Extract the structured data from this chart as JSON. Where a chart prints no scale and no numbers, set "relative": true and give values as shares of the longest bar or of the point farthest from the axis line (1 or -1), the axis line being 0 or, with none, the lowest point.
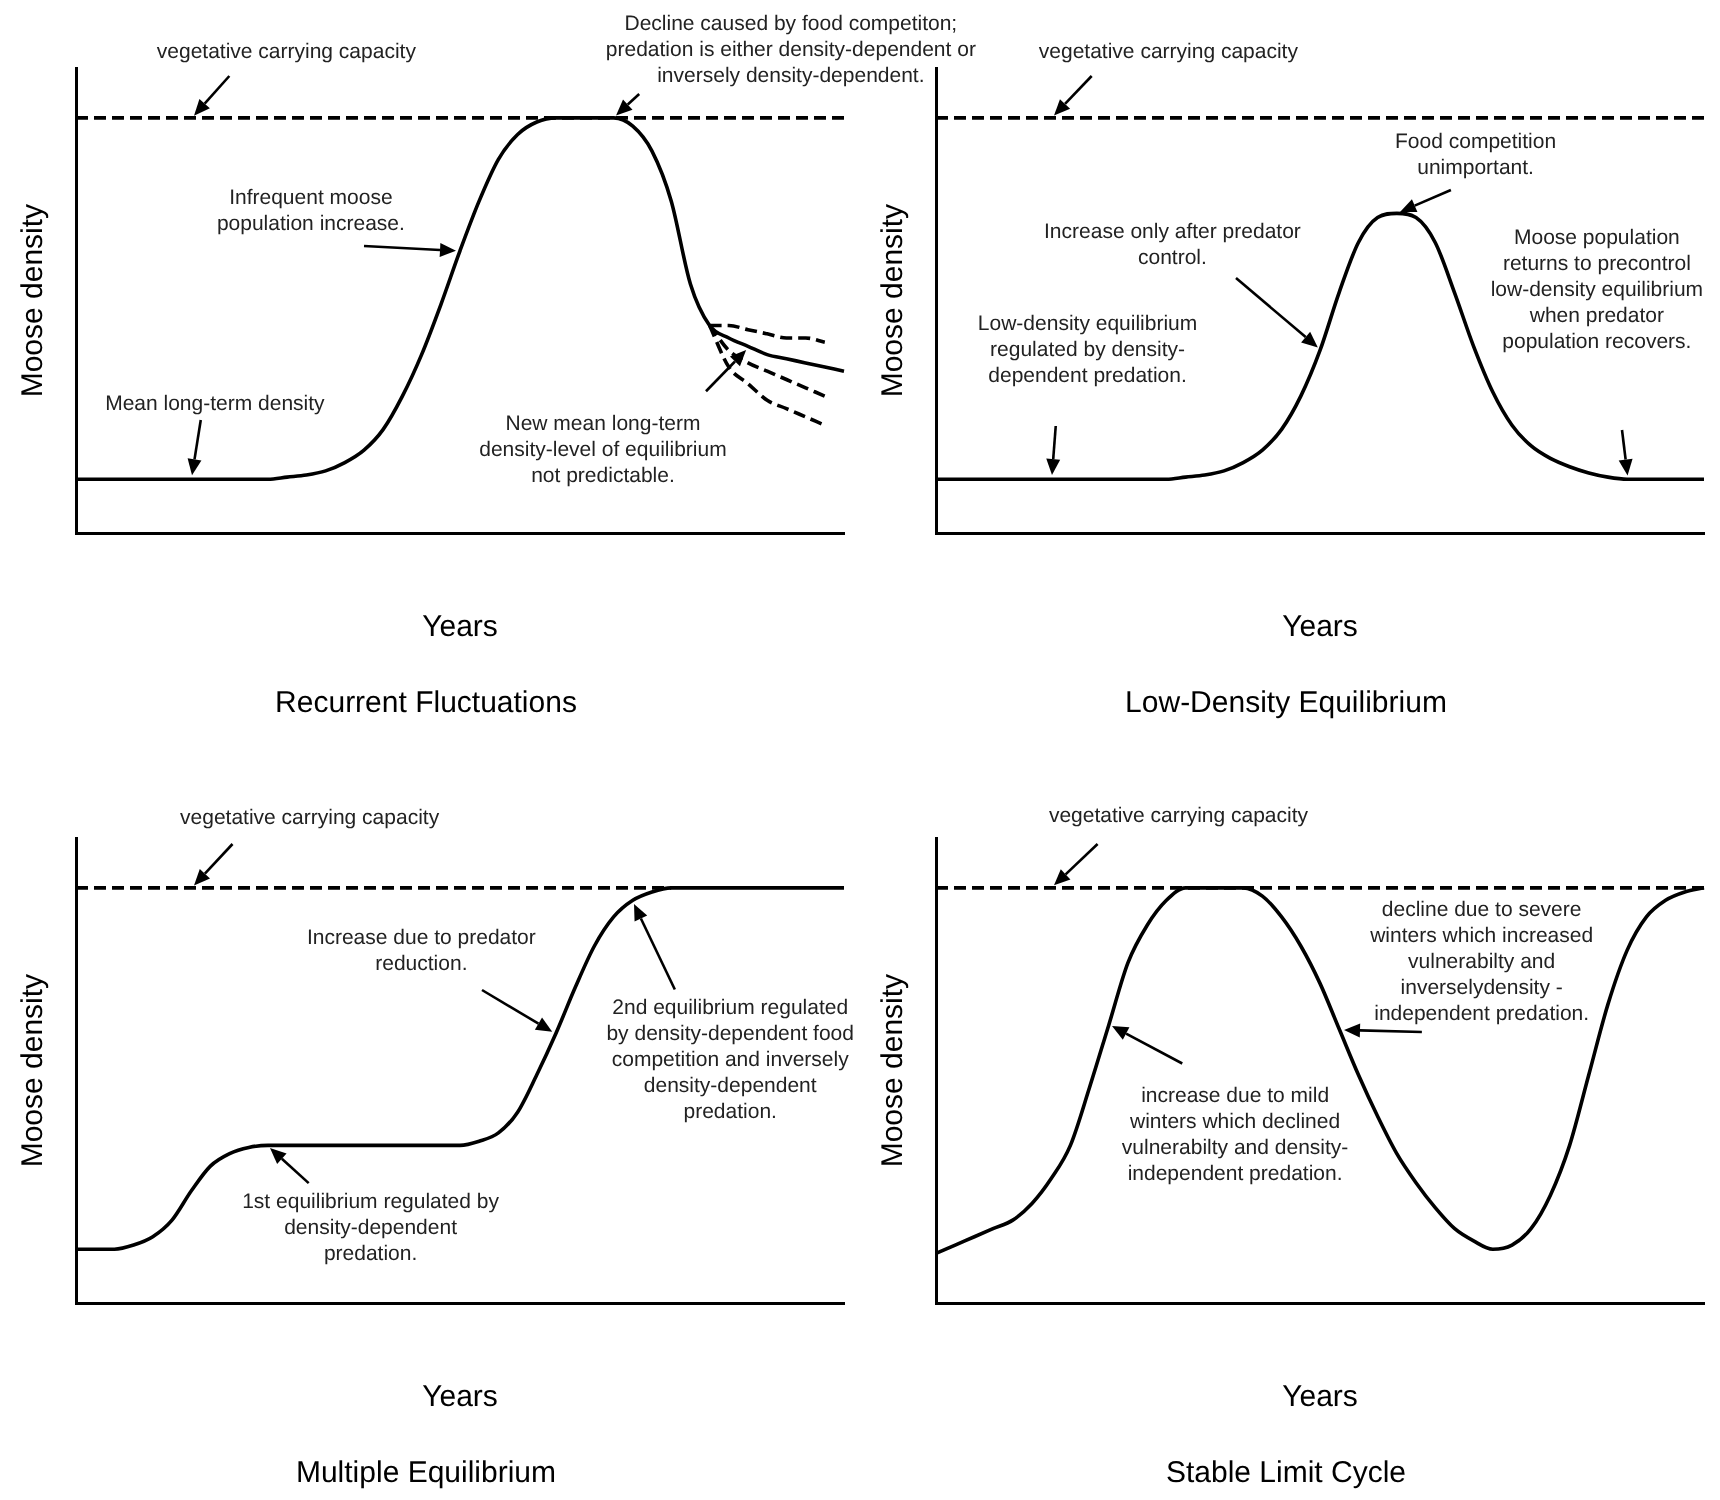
{
  "chart_data": [
    {
      "type": "line",
      "title": "Recurrent Fluctuations",
      "xlabel": "Years",
      "ylabel": "Moose density",
      "relative": true,
      "legend": false,
      "marker": "none",
      "categories": [
        null,
        null,
        null,
        null,
        null,
        null,
        null,
        null,
        null,
        null,
        null,
        null,
        null,
        null,
        null,
        null,
        null,
        null,
        null,
        null,
        null,
        null,
        null,
        null,
        null,
        null,
        null,
        null,
        null,
        null,
        null,
        null,
        null,
        null,
        null,
        null,
        null,
        null,
        null,
        null,
        null
      ],
      "series": [
        {
          "color": "#000000",
          "line_style": "solid",
          "values": [
            0.13,
            0.13,
            0.13,
            0.13,
            0.13,
            0.13,
            0.13,
            0.13,
            0.13,
            0.13,
            0.13,
            0.135,
            0.14,
            0.15,
            0.17,
            0.2,
            0.25,
            0.33,
            0.43,
            0.55,
            0.68,
            0.8,
            0.9,
            0.96,
            0.99,
            1,
            1,
            1,
            1,
            0.98,
            0.92,
            0.8,
            0.6,
            0.5,
            0.47,
            0.45,
            0.43,
            0.42,
            0.41,
            0.4,
            0.39
          ]
        },
        {
          "color": "#000000",
          "line_style": "dashed",
          "values": [
            1,
            1,
            1,
            1,
            1,
            1,
            1,
            1,
            1,
            1,
            1,
            1,
            1,
            1,
            1,
            1,
            1,
            1,
            1,
            1,
            1,
            1,
            1,
            1,
            1,
            1,
            1,
            1,
            1,
            1,
            1,
            1,
            1,
            1,
            1,
            1,
            1,
            1,
            1,
            1,
            1
          ]
        },
        {
          "color": "#000000",
          "line_style": "dashed",
          "values": [
            null,
            null,
            null,
            null,
            null,
            null,
            null,
            null,
            null,
            null,
            null,
            null,
            null,
            null,
            null,
            null,
            null,
            null,
            null,
            null,
            null,
            null,
            null,
            null,
            null,
            null,
            null,
            null,
            null,
            null,
            null,
            null,
            null,
            0.5,
            0.5,
            0.49,
            0.48,
            0.47,
            0.47,
            0.46,
            null
          ]
        },
        {
          "color": "#000000",
          "line_style": "dashed",
          "values": [
            null,
            null,
            null,
            null,
            null,
            null,
            null,
            null,
            null,
            null,
            null,
            null,
            null,
            null,
            null,
            null,
            null,
            null,
            null,
            null,
            null,
            null,
            null,
            null,
            null,
            null,
            null,
            null,
            null,
            null,
            null,
            null,
            null,
            0.5,
            0.44,
            0.41,
            0.39,
            0.37,
            0.35,
            0.33,
            null
          ]
        },
        {
          "color": "#000000",
          "line_style": "dashed",
          "values": [
            null,
            null,
            null,
            null,
            null,
            null,
            null,
            null,
            null,
            null,
            null,
            null,
            null,
            null,
            null,
            null,
            null,
            null,
            null,
            null,
            null,
            null,
            null,
            null,
            null,
            null,
            null,
            null,
            null,
            null,
            null,
            null,
            null,
            0.5,
            0.4,
            0.36,
            0.32,
            0.3,
            0.28,
            0.26,
            null
          ]
        }
      ],
      "annotations": [
        "vegetative carrying capacity",
        "Decline caused by food competiton; predation is either density-dependent or inversely density-dependent.",
        "Infrequent moose population increase.",
        "Mean long-term density",
        "New mean long-term density-level of equilibrium not predictable."
      ]
    },
    {
      "type": "line",
      "title": "Low-Density Equilibrium",
      "xlabel": "Years",
      "ylabel": "Moose density",
      "relative": true,
      "legend": false,
      "marker": "none",
      "categories": [
        null,
        null,
        null,
        null,
        null,
        null,
        null,
        null,
        null,
        null,
        null,
        null,
        null,
        null,
        null,
        null,
        null,
        null,
        null,
        null,
        null,
        null,
        null,
        null,
        null,
        null,
        null,
        null,
        null,
        null,
        null,
        null,
        null,
        null,
        null,
        null,
        null,
        null,
        null,
        null,
        null
      ],
      "series": [
        {
          "color": "#000000",
          "line_style": "solid",
          "values": [
            0.13,
            0.13,
            0.13,
            0.13,
            0.13,
            0.13,
            0.13,
            0.13,
            0.13,
            0.13,
            0.13,
            0.13,
            0.13,
            0.135,
            0.14,
            0.15,
            0.17,
            0.2,
            0.25,
            0.33,
            0.44,
            0.58,
            0.7,
            0.76,
            0.77,
            0.76,
            0.7,
            0.58,
            0.45,
            0.34,
            0.26,
            0.21,
            0.18,
            0.16,
            0.145,
            0.135,
            0.13,
            0.13,
            0.13,
            0.13,
            0.13
          ]
        },
        {
          "color": "#000000",
          "line_style": "dashed",
          "values": [
            1,
            1,
            1,
            1,
            1,
            1,
            1,
            1,
            1,
            1,
            1,
            1,
            1,
            1,
            1,
            1,
            1,
            1,
            1,
            1,
            1,
            1,
            1,
            1,
            1,
            1,
            1,
            1,
            1,
            1,
            1,
            1,
            1,
            1,
            1,
            1,
            1,
            1,
            1,
            1,
            1
          ]
        }
      ],
      "annotations": [
        "vegetative carrying capacity",
        "Food competition unimportant.",
        "Increase only after predator control.",
        "Low-density equilibrium regulated by density-dependent predation.",
        "Moose population returns to precontrol low-density equilibrium when predator population recovers."
      ]
    },
    {
      "type": "line",
      "title": "Multiple Equilibrium",
      "xlabel": "Years",
      "ylabel": "Moose density",
      "relative": true,
      "legend": false,
      "marker": "none",
      "categories": [
        null,
        null,
        null,
        null,
        null,
        null,
        null,
        null,
        null,
        null,
        null,
        null,
        null,
        null,
        null,
        null,
        null,
        null,
        null,
        null,
        null,
        null,
        null,
        null,
        null,
        null,
        null,
        null,
        null,
        null,
        null,
        null,
        null,
        null,
        null,
        null,
        null,
        null,
        null,
        null,
        null
      ],
      "series": [
        {
          "color": "#000000",
          "line_style": "solid",
          "values": [
            0.13,
            0.13,
            0.13,
            0.14,
            0.16,
            0.2,
            0.27,
            0.33,
            0.36,
            0.375,
            0.38,
            0.38,
            0.38,
            0.38,
            0.38,
            0.38,
            0.38,
            0.38,
            0.38,
            0.38,
            0.38,
            0.39,
            0.41,
            0.46,
            0.55,
            0.65,
            0.76,
            0.86,
            0.93,
            0.97,
            0.99,
            1,
            1,
            1,
            1,
            1,
            1,
            1,
            1,
            1,
            1
          ]
        },
        {
          "color": "#000000",
          "line_style": "dashed",
          "values": [
            1,
            1,
            1,
            1,
            1,
            1,
            1,
            1,
            1,
            1,
            1,
            1,
            1,
            1,
            1,
            1,
            1,
            1,
            1,
            1,
            1,
            1,
            1,
            1,
            1,
            1,
            1,
            1,
            1,
            1,
            1,
            1,
            null,
            null,
            null,
            null,
            null,
            null,
            null,
            null,
            null
          ]
        }
      ],
      "annotations": [
        "vegetative carrying capacity",
        "Increase due to predator reduction.",
        "2nd equilibrium regulated by density-dependent food competition and inversely density-dependent predation.",
        "1st equilibrium regulated by density-dependent predation."
      ]
    },
    {
      "type": "line",
      "title": "Stable Limit Cycle",
      "xlabel": "Years",
      "ylabel": "Moose density",
      "relative": true,
      "legend": false,
      "marker": "none",
      "categories": [
        null,
        null,
        null,
        null,
        null,
        null,
        null,
        null,
        null,
        null,
        null,
        null,
        null,
        null,
        null,
        null,
        null,
        null,
        null,
        null,
        null,
        null,
        null,
        null,
        null,
        null,
        null,
        null,
        null,
        null,
        null,
        null,
        null,
        null,
        null,
        null,
        null,
        null,
        null,
        null,
        null
      ],
      "series": [
        {
          "color": "#000000",
          "line_style": "solid",
          "values": [
            0.12,
            0.14,
            0.16,
            0.18,
            0.2,
            0.24,
            0.3,
            0.38,
            0.52,
            0.67,
            0.82,
            0.91,
            0.97,
            1,
            1,
            1,
            1,
            0.98,
            0.93,
            0.86,
            0.77,
            0.66,
            0.55,
            0.45,
            0.36,
            0.29,
            0.23,
            0.18,
            0.15,
            0.13,
            0.14,
            0.18,
            0.26,
            0.38,
            0.55,
            0.72,
            0.85,
            0.93,
            0.97,
            0.99,
            1
          ]
        },
        {
          "color": "#000000",
          "line_style": "dashed",
          "values": [
            1,
            1,
            1,
            1,
            1,
            1,
            1,
            1,
            1,
            1,
            1,
            1,
            1,
            1,
            1,
            1,
            1,
            1,
            1,
            1,
            1,
            1,
            1,
            1,
            1,
            1,
            1,
            1,
            1,
            1,
            1,
            1,
            1,
            1,
            1,
            1,
            1,
            1,
            1,
            1,
            1
          ]
        }
      ],
      "annotations": [
        "vegetative carrying capacity",
        "decline due to severe winters which increased vulnerabilty and inverselydensity - independent predation.",
        "increase due to mild winters which declined vulnerabilty and density-independent predation."
      ]
    }
  ]
}
